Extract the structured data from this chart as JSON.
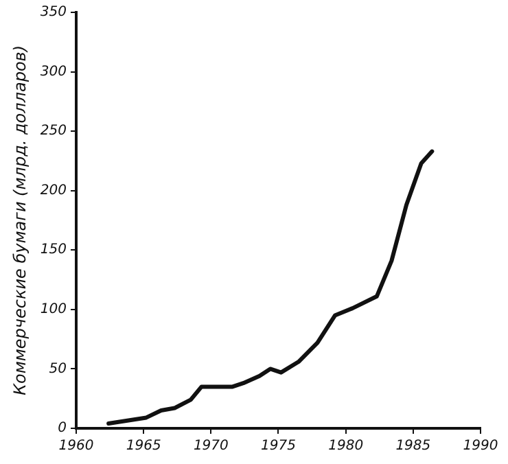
{
  "chart_data": {
    "type": "line",
    "ylabel": "Коммерческие бумаги (млрд. долларов)",
    "x": [
      1962.4,
      1965.2,
      1966.3,
      1967.3,
      1968.5,
      1969.3,
      1971.6,
      1972.4,
      1973.6,
      1974.4,
      1975.2,
      1976.5,
      1977.9,
      1979.2,
      1980.5,
      1982.3,
      1983.4,
      1984.5,
      1985.6,
      1986.4
    ],
    "series": [
      {
        "color": "#111111",
        "values": [
          4,
          9,
          15,
          17,
          24,
          35,
          35,
          38,
          44,
          50,
          47,
          56,
          72,
          95,
          101,
          111,
          141,
          188,
          223,
          233
        ]
      }
    ],
    "xlim": [
      1960,
      1990
    ],
    "xticks": [
      1960,
      1965,
      1970,
      1975,
      1980,
      1985,
      1990
    ],
    "ylim": [
      0,
      350
    ],
    "yticks": [
      0,
      50,
      100,
      150,
      200,
      250,
      300,
      350
    ],
    "grid": false,
    "legend": false,
    "marker": "none",
    "line_style": "solid"
  }
}
